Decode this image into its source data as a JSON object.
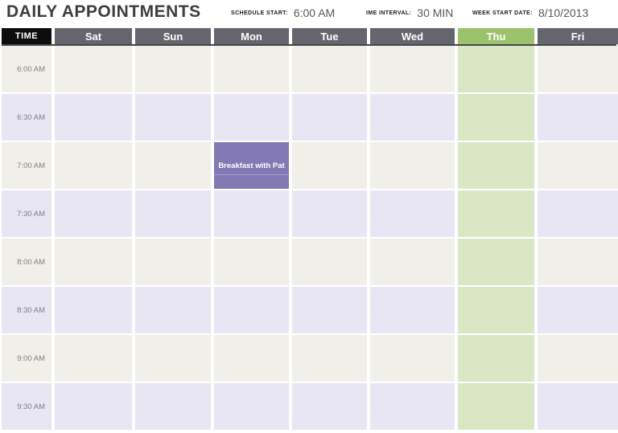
{
  "header": {
    "title": "DAILY APPOINTMENTS",
    "fields": [
      {
        "name": "schedule-start",
        "label": "SCHEDULE START:",
        "value": "6:00 AM"
      },
      {
        "name": "time-interval",
        "label": "IME INTERVAL:",
        "value": "30 MIN"
      },
      {
        "name": "week-start-date",
        "label": "WEEK START DATE:",
        "value": "8/10/2013"
      }
    ]
  },
  "calendar": {
    "time_column_header": "TIME",
    "day_headers": [
      "Sat",
      "Sun",
      "Mon",
      "Tue",
      "Wed",
      "Thu",
      "Fri"
    ],
    "highlighted_day": "Thu",
    "time_slots": [
      "6:00 AM",
      "6:30 AM",
      "7:00 AM",
      "7:30 AM",
      "8:00 AM",
      "8:30 AM",
      "9:00 AM",
      "9:30 AM"
    ],
    "appointments": [
      {
        "title": "Breakfast with Pat",
        "day": "Mon",
        "time_slot": "7:00 AM"
      }
    ]
  },
  "colors": {
    "title_text": "#3e3e3e",
    "label_text": "#1a1a1a",
    "value_text": "#595959",
    "day_header_bg": "#65656d",
    "day_header_text": "#ffffff",
    "time_header_bg": "#0d0d0d",
    "time_header_text": "#ffffff",
    "highlight_header_bg": "#9dc26d",
    "highlight_column_bg": "#d9e7c5",
    "row_stripe_a": "#f0efe9",
    "row_stripe_b": "#e8e6f2",
    "time_text": "#7f7f7f",
    "header_underline": "#45454b",
    "appointment_bg": "#8279b5",
    "appointment_text": "#ffffff"
  }
}
